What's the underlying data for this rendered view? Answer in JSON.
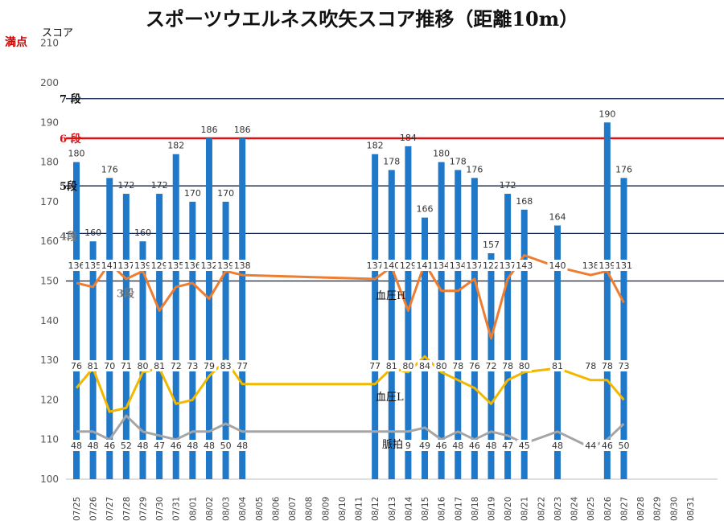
{
  "chart_data": {
    "type": "bar",
    "title": "スポーツウエルネス吹矢スコア推移（距離10m）",
    "ylabel": "スコア",
    "full_mark_label": "満点",
    "ylim": [
      100,
      210
    ],
    "yticks": [
      100,
      110,
      120,
      130,
      140,
      150,
      160,
      170,
      180,
      190,
      200,
      210
    ],
    "grid": false,
    "categories": [
      "07/25",
      "07/26",
      "07/27",
      "07/28",
      "07/29",
      "07/30",
      "07/31",
      "08/01",
      "08/02",
      "08/03",
      "08/04",
      "08/05",
      "08/06",
      "08/07",
      "08/08",
      "08/09",
      "08/10",
      "08/11",
      "08/12",
      "08/13",
      "08/14",
      "08/15",
      "08/16",
      "08/17",
      "08/18",
      "08/19",
      "08/20",
      "08/21",
      "08/22",
      "08/23",
      "08/24",
      "08/25",
      "08/26",
      "08/27",
      "08/28",
      "08/29",
      "08/30",
      "08/31"
    ],
    "series": [
      {
        "type": "bar",
        "color": "#1f78c8",
        "values": [
          180,
          160,
          176,
          172,
          160,
          172,
          182,
          170,
          186,
          170,
          186,
          null,
          null,
          null,
          null,
          null,
          null,
          null,
          182,
          178,
          184,
          166,
          180,
          178,
          176,
          157,
          172,
          168,
          null,
          164,
          null,
          null,
          190,
          176,
          null,
          null,
          null,
          null
        ]
      },
      {
        "name": "血圧H",
        "type": "line",
        "color": "#ed7d31",
        "values": [
          136,
          135,
          141,
          137,
          139,
          129,
          135,
          136,
          132,
          139,
          138,
          null,
          null,
          null,
          null,
          null,
          null,
          null,
          137,
          140,
          129,
          141,
          134,
          134,
          137,
          122,
          137,
          143,
          null,
          140,
          null,
          138,
          139,
          131,
          null,
          null,
          null,
          null
        ]
      },
      {
        "name": "血圧L",
        "type": "line",
        "color": "#f2b800",
        "values": [
          76,
          81,
          70,
          71,
          80,
          81,
          72,
          73,
          79,
          83,
          77,
          null,
          null,
          null,
          null,
          null,
          null,
          null,
          77,
          81,
          80,
          84,
          80,
          78,
          76,
          72,
          78,
          80,
          null,
          81,
          null,
          78,
          78,
          73,
          null,
          null,
          null,
          null
        ]
      },
      {
        "name": "脈拍",
        "type": "line",
        "color": "#a5a5a5",
        "values": [
          48,
          48,
          46,
          52,
          48,
          47,
          46,
          48,
          48,
          50,
          48,
          null,
          null,
          null,
          null,
          null,
          null,
          null,
          null,
          null,
          9,
          49,
          46,
          48,
          46,
          48,
          47,
          45,
          null,
          48,
          null,
          44,
          46,
          50,
          null,
          null,
          null,
          null
        ]
      }
    ],
    "rank_lines": [
      {
        "label": "7 段",
        "value": 196,
        "color": "#0b1f4d"
      },
      {
        "label": "6 段",
        "value": 186,
        "color": "#e01010"
      },
      {
        "label": "5段",
        "value": 174,
        "color": "#0b1f4d"
      },
      {
        "label": "4段",
        "value": 162,
        "color": "#0b1f4d"
      },
      {
        "label": "3段",
        "value": 150,
        "color": "#0b1f4d"
      }
    ]
  }
}
